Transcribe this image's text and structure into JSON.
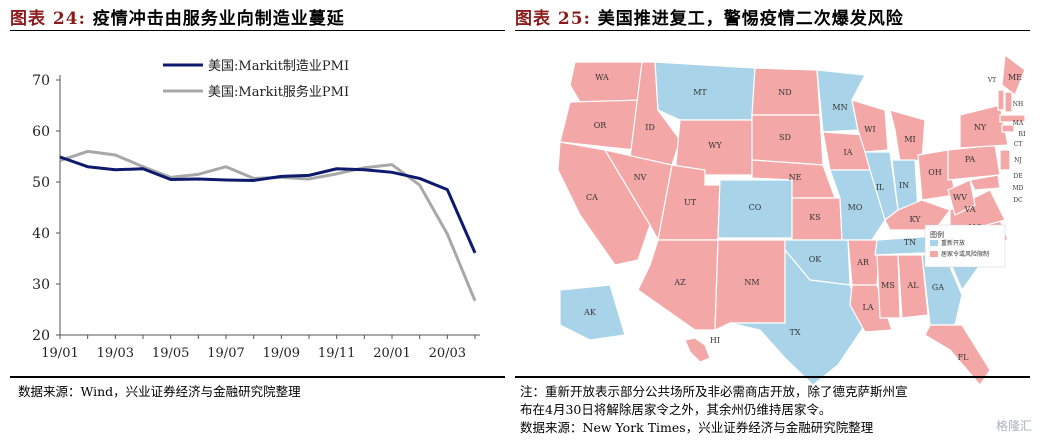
{
  "left": {
    "title_label": "图表 24:",
    "title_text": "疫情冲击由服务业向制造业蔓延",
    "source": "数据来源：Wind，兴业证券经济与金融研究院整理"
  },
  "right": {
    "title_label": "图表 25:",
    "title_text": "美国推进复工，警惕疫情二次爆发风险",
    "note_line1": "注：重新开放表示部分公共场所及非必需商店开放，除了德克萨斯州宣",
    "note_line2": "布在4月30日将解除居家令之外，其余州仍维持居家令。",
    "source": "数据来源：New York Times，兴业证券经济与金融研究院整理",
    "map_legend_title": "图例",
    "map_legend_items": [
      {
        "label": "重新开放",
        "color": "#a9d3e8"
      },
      {
        "label": "居家令或风险限制",
        "color": "#f4a7a7"
      }
    ],
    "states_blue": [
      "MT",
      "MN",
      "CO",
      "IL",
      "IN",
      "MO",
      "OK",
      "TX",
      "TN",
      "GA",
      "SC",
      "AK"
    ],
    "states_pink": [
      "WA",
      "OR",
      "ID",
      "ND",
      "SD",
      "WY",
      "NE",
      "NV",
      "UT",
      "CA",
      "AZ",
      "NM",
      "KS",
      "IA",
      "WI",
      "MI",
      "OH",
      "PA",
      "NY",
      "ME",
      "VT",
      "NH",
      "MA",
      "RI",
      "CT",
      "NJ",
      "DE",
      "MD",
      "DC",
      "WV",
      "VA",
      "KY",
      "NC",
      "AR",
      "LA",
      "MS",
      "AL",
      "FL",
      "HI"
    ]
  },
  "watermark": "格隆汇",
  "colors": {
    "title_label": "#8b1c1c",
    "mfg": "#0d1a6e",
    "svc": "#a8a8a8",
    "blue_state": "#a9d3e8",
    "pink_state": "#f4a7a7"
  },
  "chart_data": {
    "type": "line",
    "title": "疫情冲击由服务业向制造业蔓延",
    "x": [
      "19/01",
      "19/02",
      "19/03",
      "19/04",
      "19/05",
      "19/06",
      "19/07",
      "19/08",
      "19/09",
      "19/10",
      "19/11",
      "19/12",
      "20/01",
      "20/02",
      "20/03",
      "20/04"
    ],
    "x_tick_labels": [
      "19/01",
      "19/03",
      "19/05",
      "19/07",
      "19/09",
      "19/11",
      "20/01",
      "20/03"
    ],
    "series": [
      {
        "name": "美国:Markit制造业PMI",
        "color": "#0d1a6e",
        "values": [
          54.9,
          53.0,
          52.4,
          52.6,
          50.5,
          50.6,
          50.4,
          50.3,
          51.1,
          51.3,
          52.6,
          52.4,
          51.9,
          50.7,
          48.5,
          36.1
        ]
      },
      {
        "name": "美国:Markit服务业PMI",
        "color": "#a8a8a8",
        "values": [
          54.2,
          56.0,
          55.3,
          53.0,
          50.9,
          51.5,
          53.0,
          50.7,
          50.9,
          50.6,
          51.6,
          52.8,
          53.4,
          49.4,
          39.8,
          26.7
        ]
      }
    ],
    "ylim": [
      20,
      70
    ],
    "yticks": [
      20,
      30,
      40,
      50,
      60,
      70
    ],
    "legend_position": "top-right"
  }
}
